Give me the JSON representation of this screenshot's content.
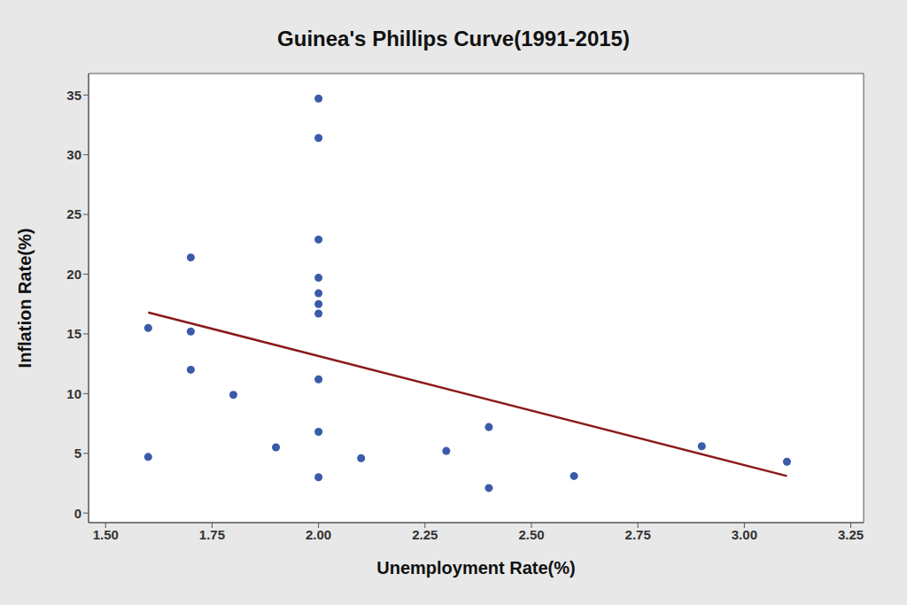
{
  "chart_data": {
    "type": "scatter",
    "title": "Guinea's Phillips Curve(1991-2015)",
    "x_label": "Unemployment Rate(%)",
    "y_label": "Inflation Rate(%)",
    "grid": false,
    "xlim": [
      1.46,
      3.28
    ],
    "ylim": [
      -0.8,
      36.8
    ],
    "xticks": [
      {
        "value": 1.5,
        "label": "1.50"
      },
      {
        "value": 1.75,
        "label": "1.75"
      },
      {
        "value": 2,
        "label": "2.00"
      },
      {
        "value": 2.25,
        "label": "2.25"
      },
      {
        "value": 2.5,
        "label": "2.50"
      },
      {
        "value": 2.75,
        "label": "2.75"
      },
      {
        "value": 3,
        "label": "3.00"
      },
      {
        "value": 3.25,
        "label": "3.25"
      }
    ],
    "yticks": [
      0,
      5,
      10,
      15,
      20,
      25,
      30,
      35
    ],
    "series": [
      {
        "type": "scatter",
        "marker": "circle",
        "color": "#3a5ba8",
        "x": [
          1.6,
          1.6,
          1.7,
          1.7,
          1.7,
          1.8,
          1.9,
          2.0,
          2.0,
          2.0,
          2.0,
          2.0,
          2.0,
          2.0,
          2.0,
          2.0,
          2.0,
          2.1,
          2.3,
          2.4,
          2.4,
          2.6,
          2.9,
          3.1
        ],
        "values": [
          15.5,
          4.7,
          21.4,
          15.2,
          12.0,
          9.9,
          5.5,
          34.7,
          31.4,
          22.9,
          19.7,
          18.4,
          17.5,
          16.7,
          11.2,
          6.8,
          3.0,
          4.6,
          5.2,
          7.2,
          2.1,
          3.1,
          5.6,
          4.3
        ]
      },
      {
        "type": "line",
        "line_style": "solid",
        "color": "#8b1a1a",
        "x": [
          1.6,
          3.1
        ],
        "values": [
          16.8,
          3.1
        ]
      }
    ]
  }
}
